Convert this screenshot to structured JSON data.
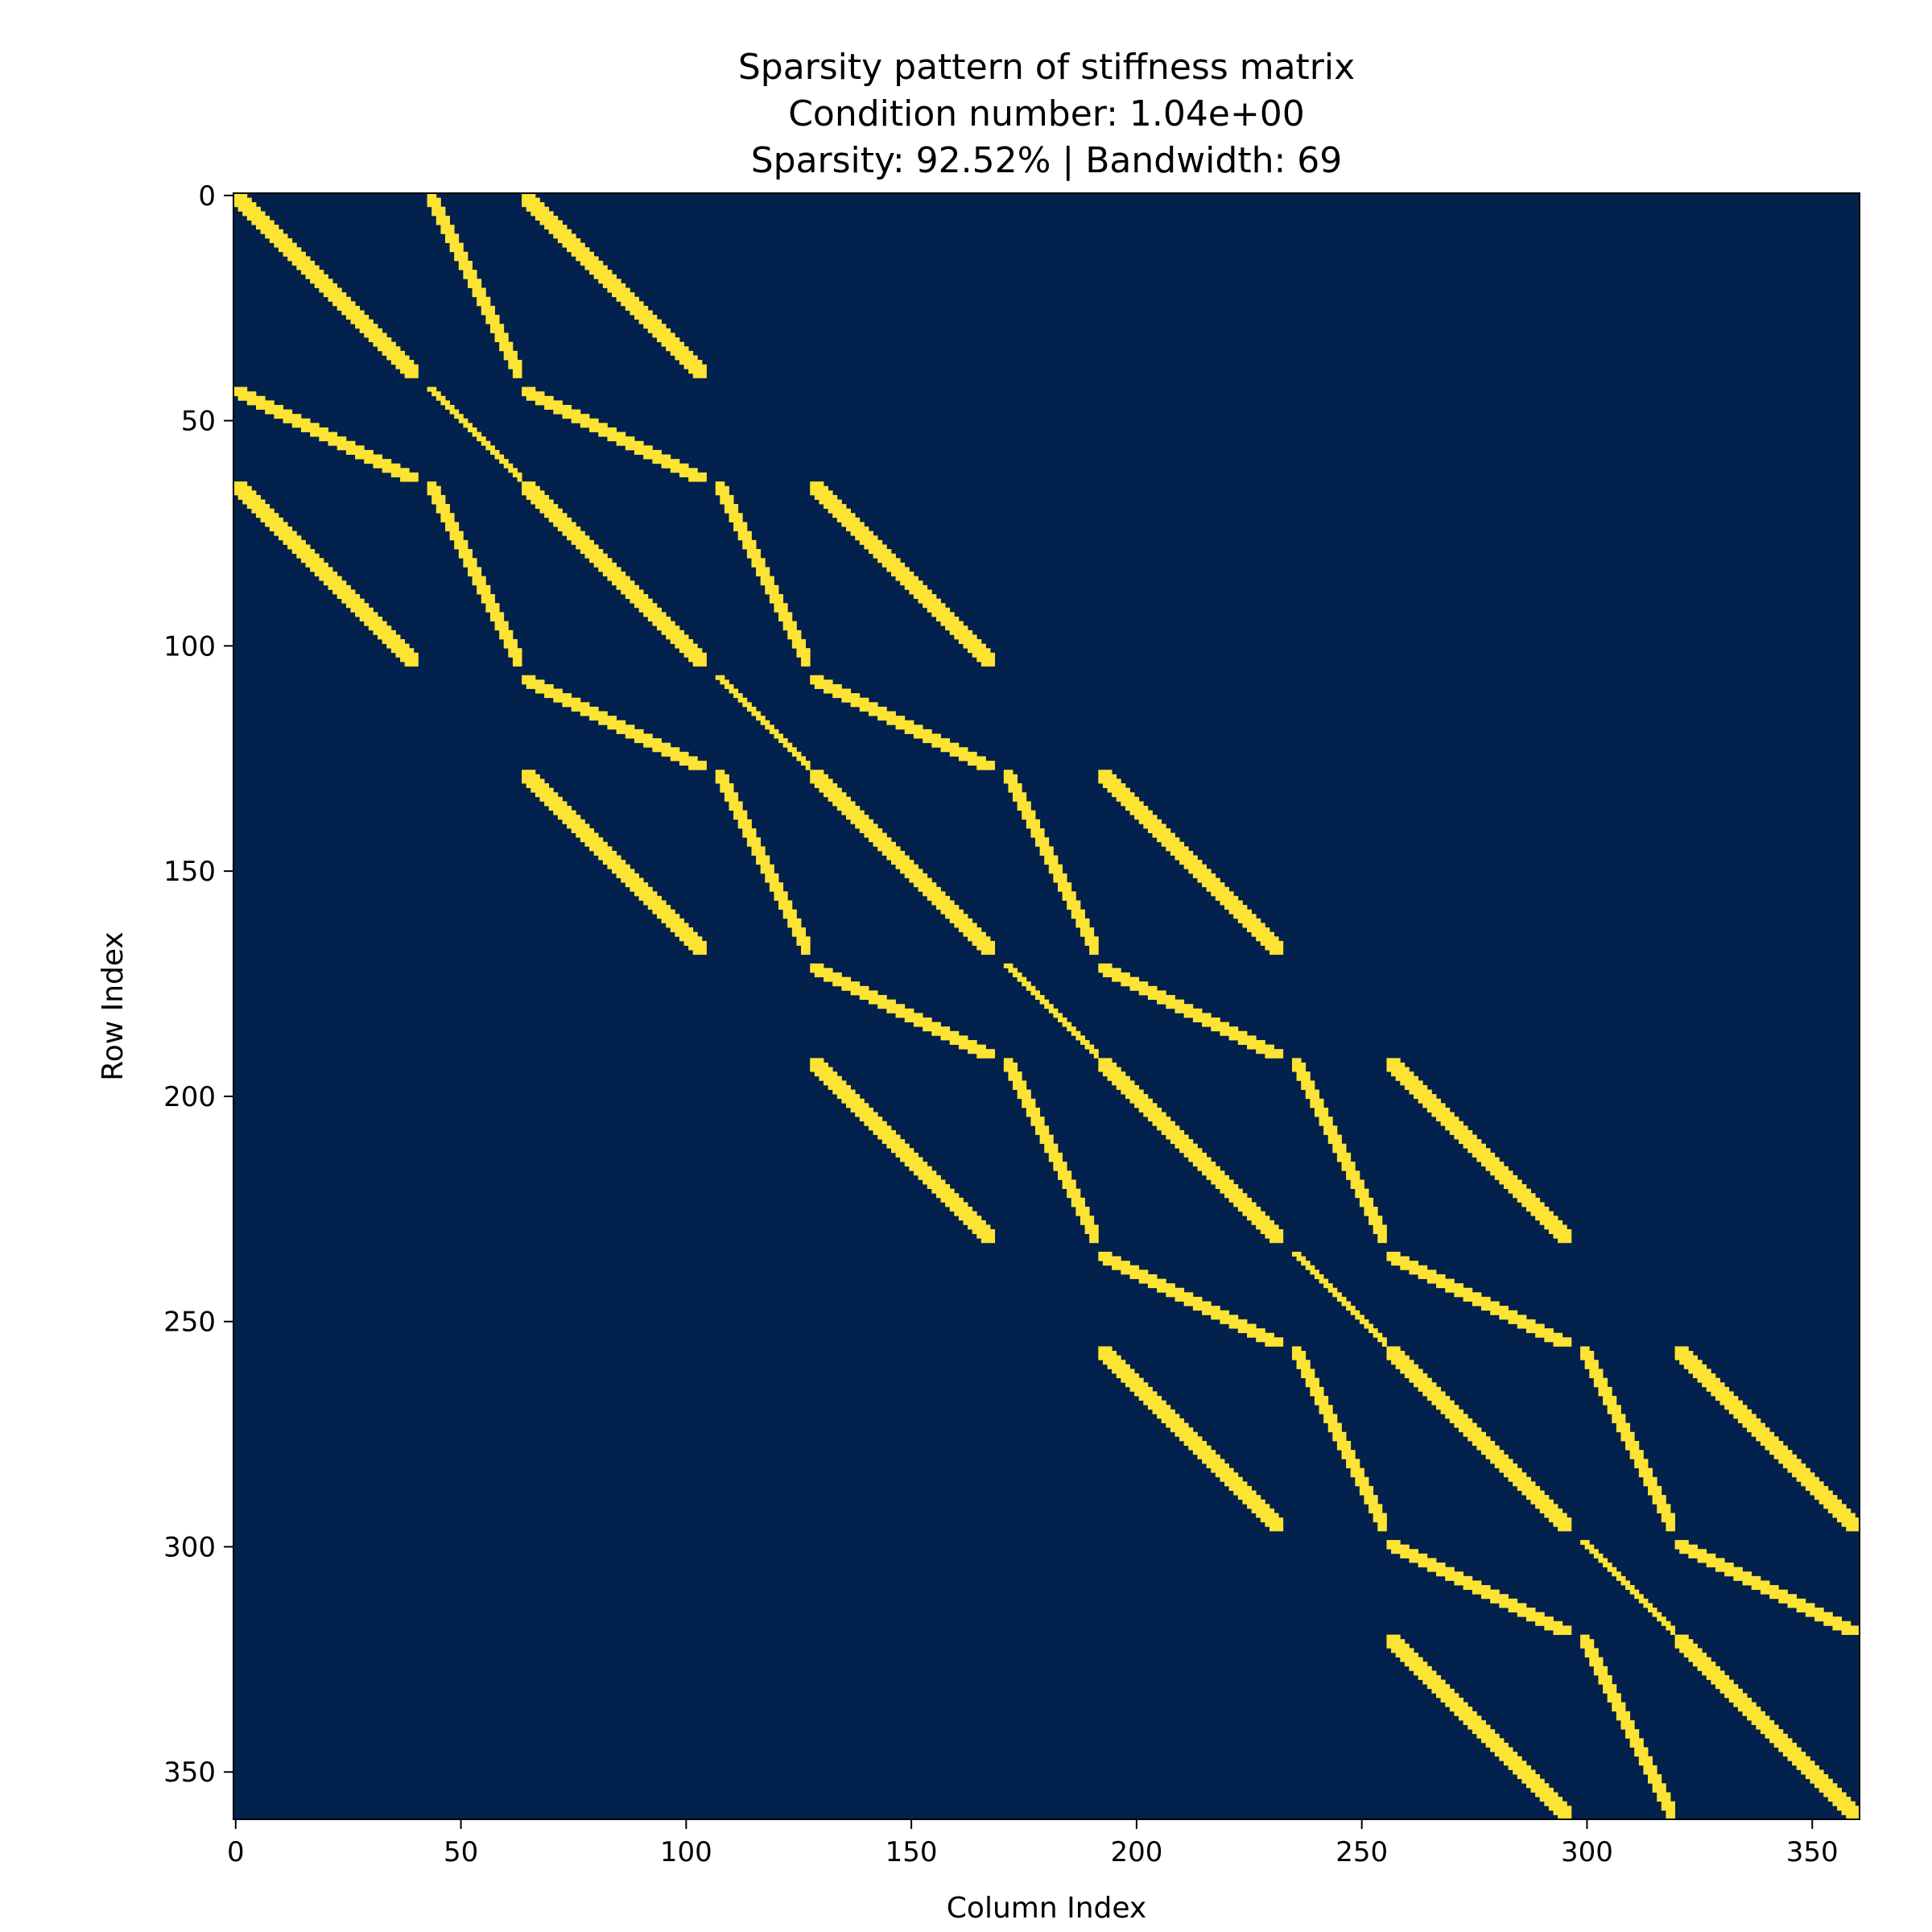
{
  "chart_data": {
    "type": "heatmap",
    "subtype": "sparsity-pattern",
    "title_lines": [
      "Sparsity pattern of stiffness matrix",
      "Condition number: 1.04e+00",
      "Sparsity: 92.52% | Bandwidth: 69"
    ],
    "xlabel": "Column Index",
    "ylabel": "Row Index",
    "x_ticks": [
      0,
      50,
      100,
      150,
      200,
      250,
      300,
      350
    ],
    "y_ticks": [
      0,
      50,
      100,
      150,
      200,
      250,
      300,
      350
    ],
    "xlim": [
      0,
      361
    ],
    "ylim": [
      361,
      0
    ],
    "colors": {
      "zero": "#02214d",
      "nonzero": "#fde333"
    },
    "nonzero_bands": [
      {
        "rows": [
          0,
          40
        ],
        "cols": [
          0,
          40
        ],
        "orientation": "diagonal",
        "width": 5
      },
      {
        "rows": [
          0,
          40
        ],
        "cols": [
          43,
          63
        ],
        "orientation": "steep",
        "width": 3
      },
      {
        "rows": [
          0,
          40
        ],
        "cols": [
          64,
          104
        ],
        "orientation": "diagonal",
        "width": 5
      },
      {
        "rows": [
          43,
          63
        ],
        "cols": [
          0,
          40
        ],
        "orientation": "shallow",
        "width": 3
      },
      {
        "rows": [
          43,
          63
        ],
        "cols": [
          43,
          63
        ],
        "orientation": "diagonal",
        "width": 2
      },
      {
        "rows": [
          43,
          63
        ],
        "cols": [
          64,
          104
        ],
        "orientation": "shallow",
        "width": 3
      },
      {
        "rows": [
          64,
          104
        ],
        "cols": [
          0,
          40
        ],
        "orientation": "diagonal",
        "width": 5
      },
      {
        "rows": [
          64,
          104
        ],
        "cols": [
          43,
          63
        ],
        "orientation": "steep",
        "width": 3
      },
      {
        "rows": [
          64,
          104
        ],
        "cols": [
          64,
          104
        ],
        "orientation": "diagonal",
        "width": 5
      },
      {
        "rows": [
          64,
          104
        ],
        "cols": [
          107,
          127
        ],
        "orientation": "steep",
        "width": 3
      },
      {
        "rows": [
          64,
          104
        ],
        "cols": [
          128,
          168
        ],
        "orientation": "diagonal",
        "width": 5
      },
      {
        "rows": [
          107,
          127
        ],
        "cols": [
          64,
          104
        ],
        "orientation": "shallow",
        "width": 3
      },
      {
        "rows": [
          107,
          127
        ],
        "cols": [
          107,
          127
        ],
        "orientation": "diagonal",
        "width": 2
      },
      {
        "rows": [
          107,
          127
        ],
        "cols": [
          128,
          168
        ],
        "orientation": "shallow",
        "width": 3
      },
      {
        "rows": [
          128,
          168
        ],
        "cols": [
          64,
          104
        ],
        "orientation": "diagonal",
        "width": 5
      },
      {
        "rows": [
          128,
          168
        ],
        "cols": [
          107,
          127
        ],
        "orientation": "steep",
        "width": 3
      },
      {
        "rows": [
          128,
          168
        ],
        "cols": [
          128,
          168
        ],
        "orientation": "diagonal",
        "width": 5
      },
      {
        "rows": [
          128,
          168
        ],
        "cols": [
          171,
          191
        ],
        "orientation": "steep",
        "width": 3
      },
      {
        "rows": [
          128,
          168
        ],
        "cols": [
          192,
          232
        ],
        "orientation": "diagonal",
        "width": 5
      },
      {
        "rows": [
          171,
          191
        ],
        "cols": [
          128,
          168
        ],
        "orientation": "shallow",
        "width": 3
      },
      {
        "rows": [
          171,
          191
        ],
        "cols": [
          171,
          191
        ],
        "orientation": "diagonal",
        "width": 2
      },
      {
        "rows": [
          171,
          191
        ],
        "cols": [
          192,
          232
        ],
        "orientation": "shallow",
        "width": 3
      },
      {
        "rows": [
          192,
          232
        ],
        "cols": [
          128,
          168
        ],
        "orientation": "diagonal",
        "width": 5
      },
      {
        "rows": [
          192,
          232
        ],
        "cols": [
          171,
          191
        ],
        "orientation": "steep",
        "width": 3
      },
      {
        "rows": [
          192,
          232
        ],
        "cols": [
          192,
          232
        ],
        "orientation": "diagonal",
        "width": 5
      },
      {
        "rows": [
          192,
          232
        ],
        "cols": [
          235,
          255
        ],
        "orientation": "steep",
        "width": 3
      },
      {
        "rows": [
          192,
          232
        ],
        "cols": [
          256,
          296
        ],
        "orientation": "diagonal",
        "width": 5
      },
      {
        "rows": [
          235,
          255
        ],
        "cols": [
          192,
          232
        ],
        "orientation": "shallow",
        "width": 3
      },
      {
        "rows": [
          235,
          255
        ],
        "cols": [
          235,
          255
        ],
        "orientation": "diagonal",
        "width": 2
      },
      {
        "rows": [
          235,
          255
        ],
        "cols": [
          256,
          296
        ],
        "orientation": "shallow",
        "width": 3
      },
      {
        "rows": [
          256,
          296
        ],
        "cols": [
          192,
          232
        ],
        "orientation": "diagonal",
        "width": 5
      },
      {
        "rows": [
          256,
          296
        ],
        "cols": [
          235,
          255
        ],
        "orientation": "steep",
        "width": 3
      },
      {
        "rows": [
          256,
          296
        ],
        "cols": [
          256,
          296
        ],
        "orientation": "diagonal",
        "width": 5
      },
      {
        "rows": [
          256,
          296
        ],
        "cols": [
          299,
          319
        ],
        "orientation": "steep",
        "width": 3
      },
      {
        "rows": [
          256,
          296
        ],
        "cols": [
          320,
          360
        ],
        "orientation": "diagonal",
        "width": 5
      },
      {
        "rows": [
          299,
          319
        ],
        "cols": [
          256,
          296
        ],
        "orientation": "shallow",
        "width": 3
      },
      {
        "rows": [
          299,
          319
        ],
        "cols": [
          299,
          319
        ],
        "orientation": "diagonal",
        "width": 2
      },
      {
        "rows": [
          299,
          319
        ],
        "cols": [
          320,
          360
        ],
        "orientation": "shallow",
        "width": 3
      },
      {
        "rows": [
          320,
          360
        ],
        "cols": [
          256,
          296
        ],
        "orientation": "diagonal",
        "width": 5
      },
      {
        "rows": [
          320,
          360
        ],
        "cols": [
          299,
          319
        ],
        "orientation": "steep",
        "width": 3
      },
      {
        "rows": [
          320,
          360
        ],
        "cols": [
          320,
          360
        ],
        "orientation": "diagonal",
        "width": 5
      }
    ]
  }
}
